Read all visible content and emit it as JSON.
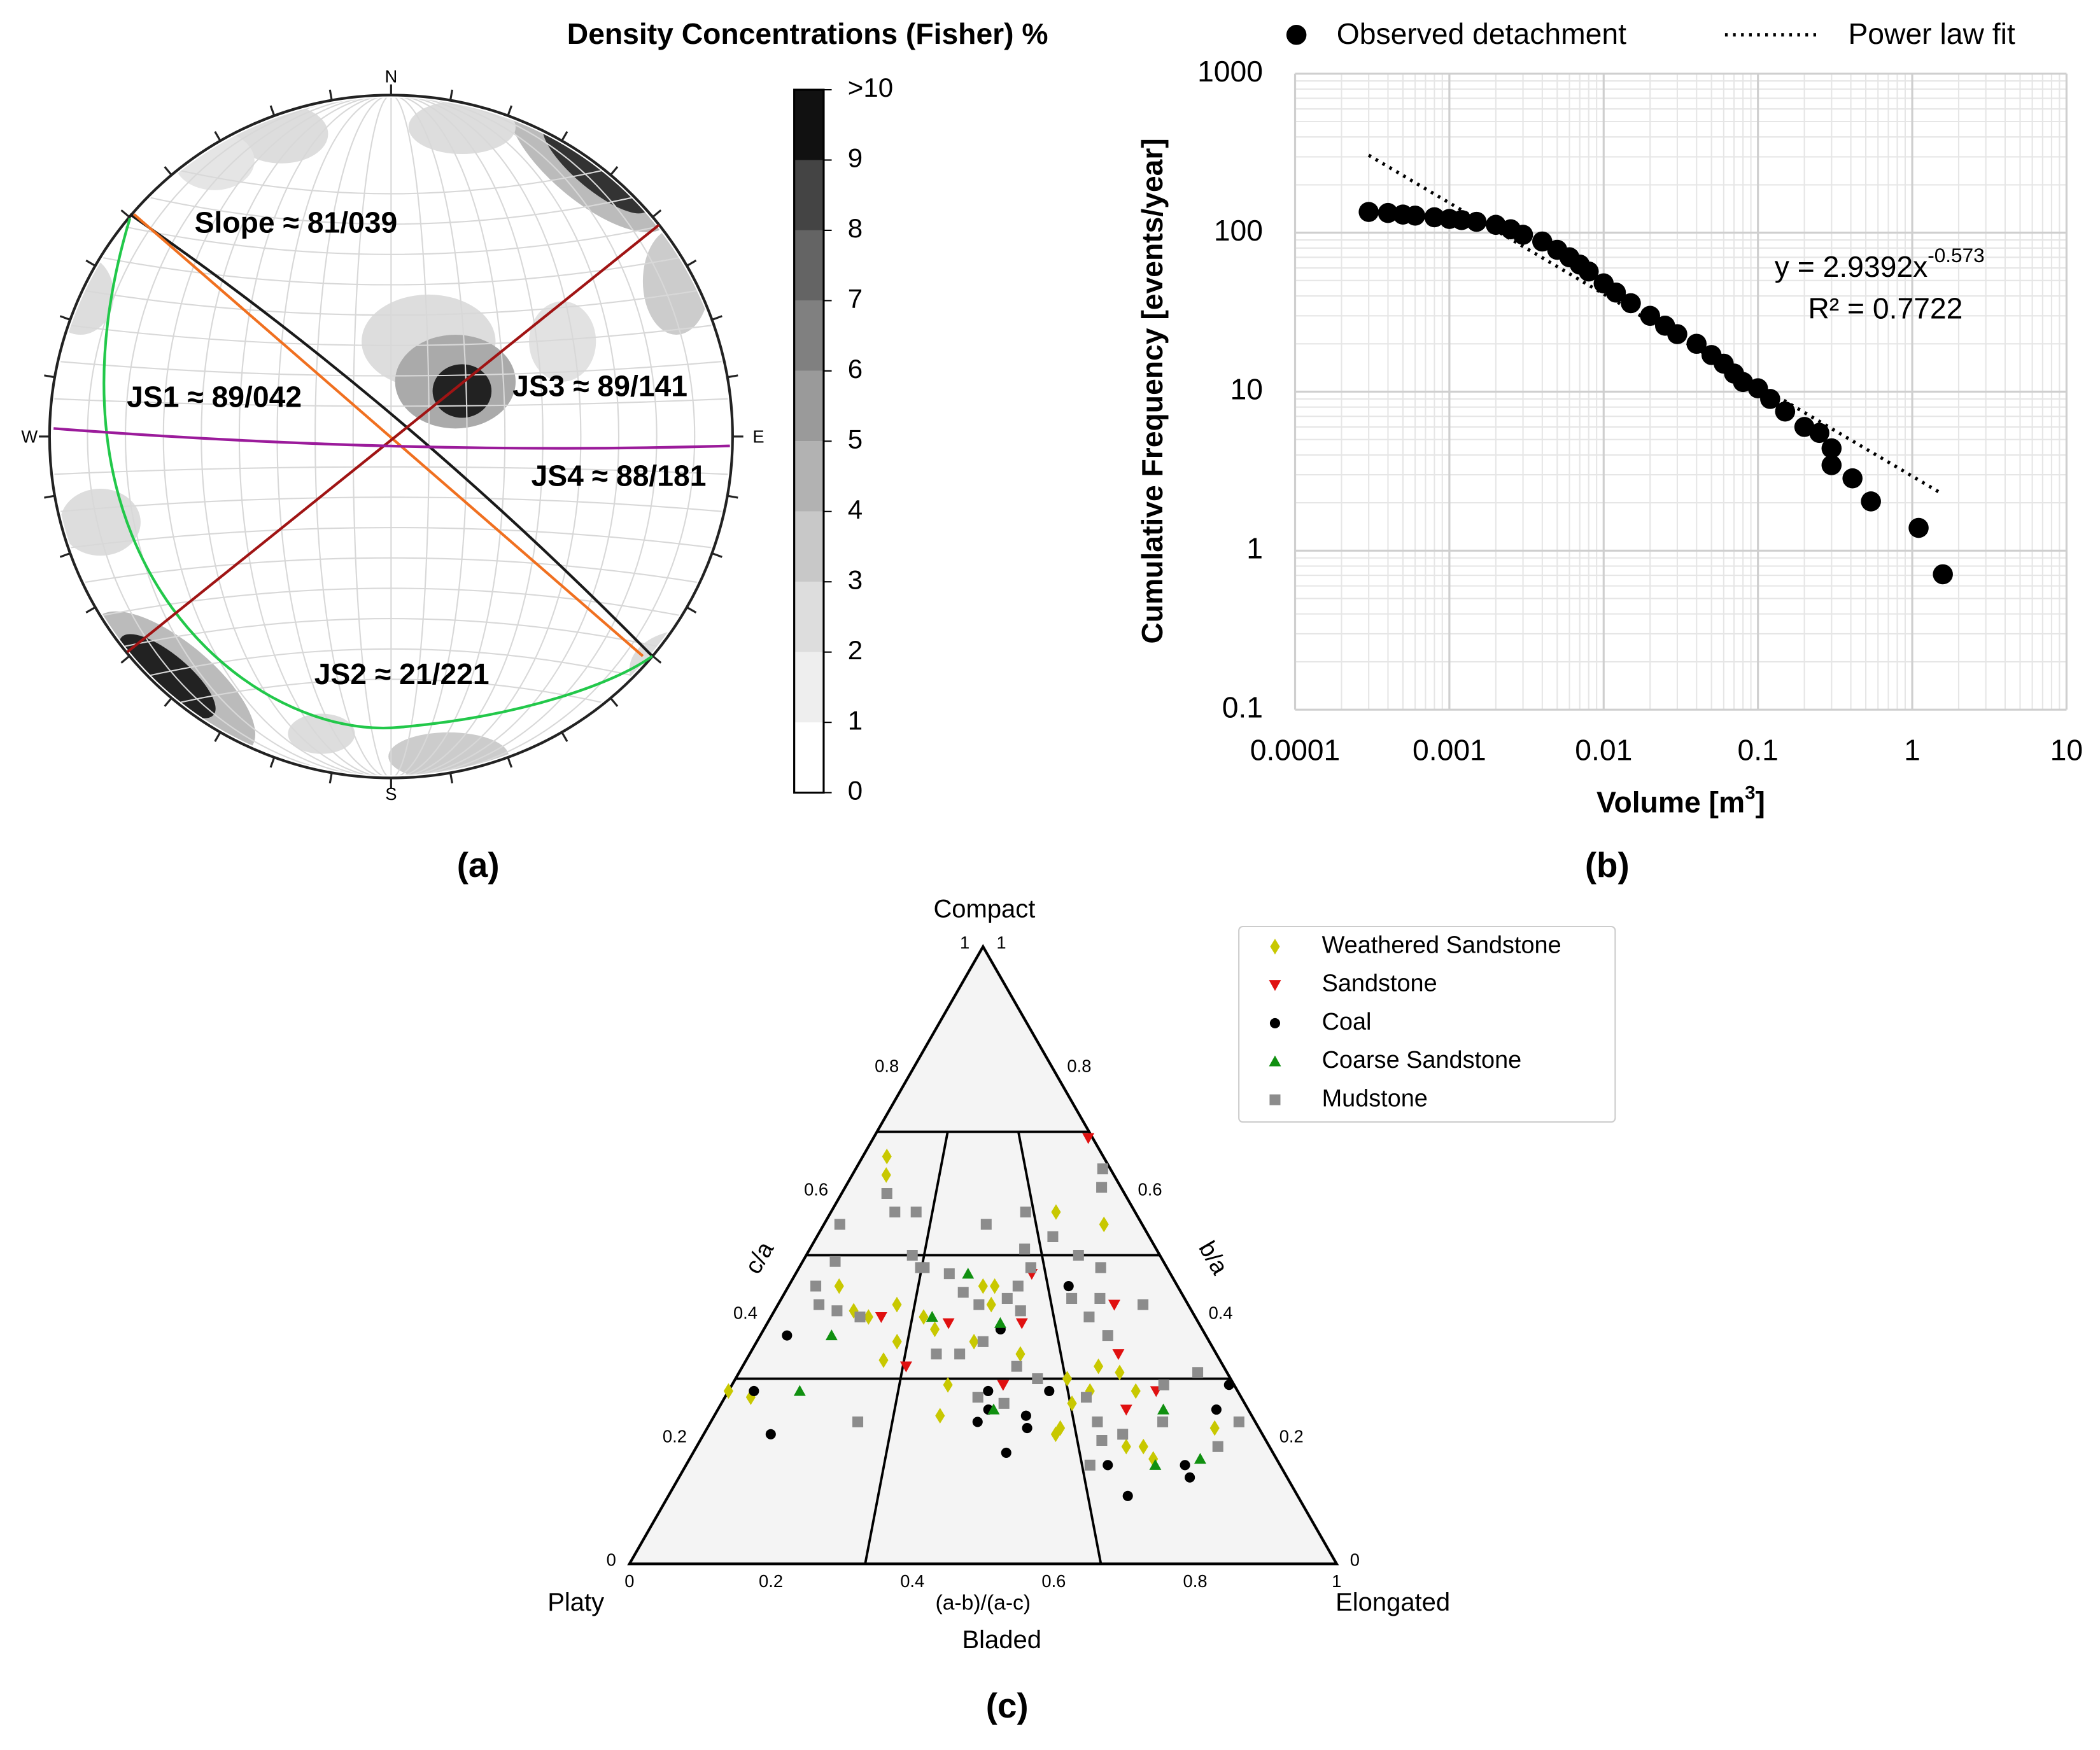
{
  "chart_data": [
    {
      "type": "stereonet",
      "label": "(a)",
      "colorbar_title": "Density Concentrations (Fisher) %",
      "directions": [
        "N",
        "E",
        "S",
        "W"
      ],
      "planes": [
        {
          "name": "Slope ≈ 81/039",
          "color": "#1a1a1a"
        },
        {
          "name": "JS1 ≈ 89/042",
          "color": "#f07020"
        },
        {
          "name": "JS2 ≈ 21/221",
          "color": "#22c84a"
        },
        {
          "name": "JS3 ≈ 89/141",
          "color": "#a01414"
        },
        {
          "name": "JS4 ≈ 88/181",
          "color": "#9b1b9b"
        }
      ],
      "colorbar_lim": [
        0,
        10
      ],
      "colorbar_ticks": [
        0,
        1,
        2,
        3,
        4,
        5,
        6,
        7,
        8,
        9,
        {
          "value": 10,
          "label": ">10"
        }
      ],
      "colorbar_colors": [
        "#ffffff",
        "#eeeeee",
        "#dddddd",
        "#c8c8c8",
        "#b2b2b2",
        "#9a9a9a",
        "#808080",
        "#646464",
        "#444444",
        "#111111"
      ]
    },
    {
      "type": "scatter",
      "label": "(b)",
      "xscale": "log",
      "yscale": "log",
      "xlabel": [
        "Volume [m",
        "3",
        "]"
      ],
      "ylabel": "Cumulative Frequency [events/year]",
      "xlim": [
        0.0001,
        10
      ],
      "ylim": [
        0.1,
        1000
      ],
      "xticks": [
        0.0001,
        0.001,
        0.01,
        0.1,
        1,
        10
      ],
      "yticks": [
        0.1,
        1,
        10,
        100,
        1000
      ],
      "grid": true,
      "legend": "top",
      "equation": {
        "text": "y = 2.9392x",
        "exponent": "-0.573"
      },
      "r_squared": "R² = 0.7722",
      "series": [
        {
          "name": "Observed detachment",
          "color": "#000000",
          "style": "marker",
          "x": [
            0.0003,
            0.0004,
            0.0005,
            0.0006,
            0.0008,
            0.001,
            0.0012,
            0.0015,
            0.002,
            0.0025,
            0.003,
            0.004,
            0.005,
            0.006,
            0.007,
            0.008,
            0.01,
            0.012,
            0.015,
            0.02,
            0.025,
            0.03,
            0.04,
            0.05,
            0.06,
            0.07,
            0.08,
            0.1,
            0.12,
            0.15,
            0.2,
            0.25,
            0.3,
            0.3,
            0.41,
            0.54,
            1.1,
            1.58
          ],
          "values": [
            135,
            133,
            130,
            128,
            125,
            122,
            120,
            117,
            112,
            105,
            97,
            88,
            78,
            70,
            63,
            57,
            48,
            42,
            36,
            30,
            26,
            23,
            20,
            17,
            15,
            13,
            11.5,
            10.5,
            9,
            7.5,
            6,
            5.5,
            4.4,
            3.45,
            2.85,
            2.04,
            1.39,
            0.71
          ]
        },
        {
          "name": "Power law fit",
          "color": "#000000",
          "style": "dotted",
          "x": [
            0.0003,
            1.5
          ],
          "values": [
            307,
            2.33
          ]
        }
      ]
    },
    {
      "type": "ternary",
      "label": "(c)",
      "top_label": "Compact",
      "left_label": "Platy",
      "right_label": "Elongated",
      "xlabel": "(a-b)/(a-c)",
      "middle_label": "Bladed",
      "left_axis_label": "c/a",
      "right_axis_label": "b/a",
      "ticks": [
        0,
        0.2,
        0.4,
        0.6,
        0.8,
        1
      ],
      "series": [
        {
          "name": "Weathered Sandstone",
          "color": "#c8c800",
          "marker": "diamond",
          "x": [
            0.1,
            0.13,
            0.13,
            0.19,
            0.23,
            0.29,
            0.0,
            0.05,
            0.29,
            0.36,
            0.42,
            0.43,
            0.48,
            0.5,
            0.53,
            0.52,
            0.58,
            0.63,
            0.64,
            0.67,
            0.71,
            0.88,
            0.74,
            0.78,
            0.8,
            0.78,
            0.79,
            0.75,
            0.92,
            0.67,
            0.74,
            0.39,
            0.31
          ],
          "values": [
            0.66,
            0.63,
            0.45,
            0.41,
            0.4,
            0.33,
            0.28,
            0.27,
            0.42,
            0.4,
            0.24,
            0.29,
            0.36,
            0.45,
            0.45,
            0.42,
            0.34,
            0.21,
            0.22,
            0.26,
            0.28,
            0.55,
            0.32,
            0.31,
            0.28,
            0.19,
            0.17,
            0.19,
            0.22,
            0.3,
            0.57,
            0.38,
            0.36
          ]
        },
        {
          "name": "Sandstone",
          "color": "#e01010",
          "marker": "triangle-down",
          "x": [
            0.98,
            0.63,
            0.26,
            0.42,
            0.34,
            0.59,
            0.82,
            0.54,
            0.84,
            0.77,
            0.79
          ],
          "values": [
            0.69,
            0.47,
            0.4,
            0.39,
            0.32,
            0.39,
            0.42,
            0.29,
            0.28,
            0.25,
            0.34
          ]
        },
        {
          "name": "Coal",
          "color": "#000000",
          "marker": "circle",
          "x": [
            0.06,
            0.05,
            0.12,
            0.51,
            0.49,
            0.51,
            0.54,
            0.58,
            0.58,
            0.63,
            0.72,
            0.71,
            0.73,
            0.84,
            0.84,
            0.99,
            0.94,
            0.54
          ],
          "values": [
            0.37,
            0.28,
            0.21,
            0.28,
            0.23,
            0.25,
            0.18,
            0.24,
            0.22,
            0.28,
            0.45,
            0.16,
            0.11,
            0.16,
            0.14,
            0.29,
            0.25,
            0.38
          ]
        },
        {
          "name": "Coarse Sandstone",
          "color": "#109010",
          "marker": "triangle-up",
          "x": [
            0.16,
            0.14,
            0.46,
            0.54,
            0.38,
            0.52,
            0.84,
            0.79,
            0.87
          ],
          "values": [
            0.37,
            0.28,
            0.47,
            0.39,
            0.4,
            0.25,
            0.25,
            0.16,
            0.17
          ]
        },
        {
          "name": "Mudstone",
          "color": "#8c8c8c",
          "marker": "square",
          "x": [
            0.16,
            0.21,
            0.28,
            0.05,
            0.09,
            0.3,
            0.33,
            0.41,
            0.45,
            0.49,
            0.56,
            0.59,
            0.63,
            0.71,
            0.77,
            0.82,
            0.79,
            0.78,
            0.89,
            0.93,
            0.97,
            0.64,
            0.51,
            0.62,
            0.59,
            0.72,
            0.75,
            0.1,
            0.15,
            0.27,
            0.4,
            0.45,
            0.5,
            0.54,
            0.61,
            0.7,
            0.71,
            0.83,
            0.94,
            0.97,
            0.91,
            0.68,
            0.71,
            0.75,
            0.49,
            0.21,
            0.07,
            0.34,
            0.57,
            0.86
          ],
          "values": [
            0.6,
            0.57,
            0.57,
            0.55,
            0.49,
            0.5,
            0.48,
            0.47,
            0.44,
            0.42,
            0.43,
            0.41,
            0.48,
            0.53,
            0.5,
            0.48,
            0.43,
            0.37,
            0.42,
            0.61,
            0.64,
            0.57,
            0.55,
            0.51,
            0.45,
            0.43,
            0.4,
            0.42,
            0.41,
            0.23,
            0.34,
            0.34,
            0.36,
            0.26,
            0.3,
            0.27,
            0.23,
            0.23,
            0.31,
            0.23,
            0.19,
            0.16,
            0.2,
            0.21,
            0.27,
            0.4,
            0.45,
            0.48,
            0.32,
            0.29
          ]
        }
      ]
    }
  ]
}
